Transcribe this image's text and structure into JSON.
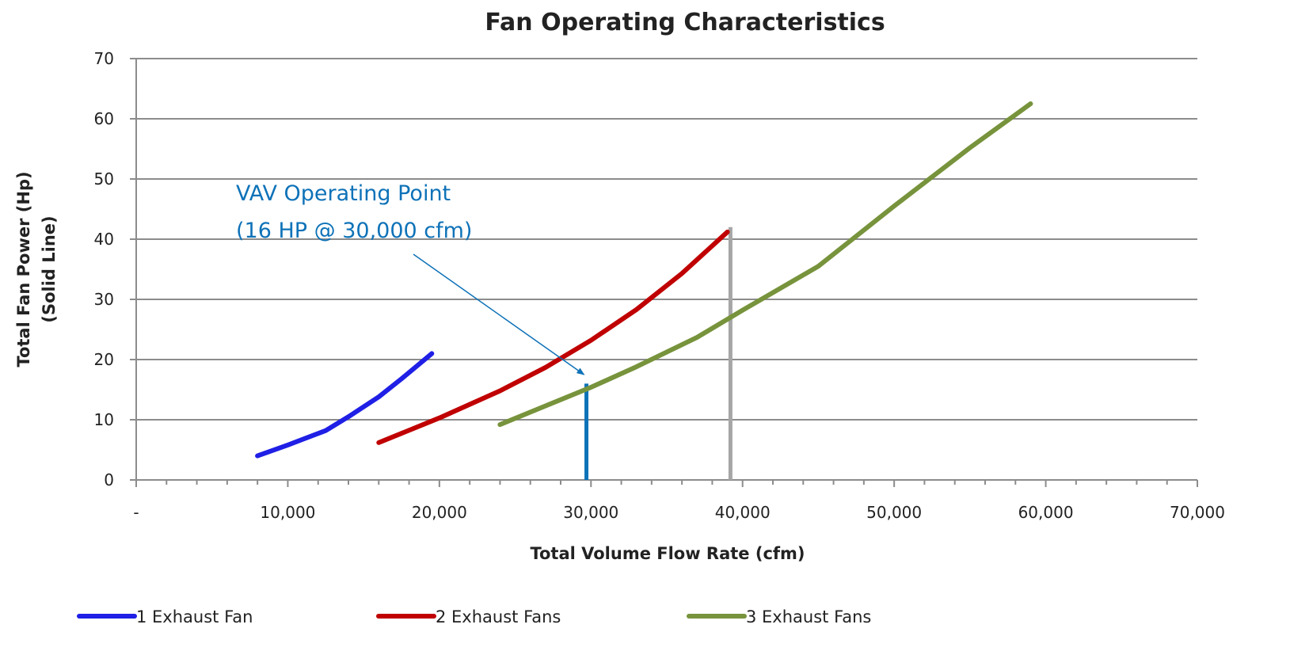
{
  "chart_data": {
    "type": "line",
    "title": "Fan Operating Characteristics",
    "xlabel": "Total Volume Flow Rate (cfm)",
    "ylabel_lines": [
      "Total Fan Power (Hp)",
      "(Solid Line)"
    ],
    "xlim": [
      0,
      70000
    ],
    "ylim": [
      0,
      70
    ],
    "x_ticks": [
      0,
      10000,
      20000,
      30000,
      40000,
      50000,
      60000,
      70000
    ],
    "x_tick_labels": [
      "-",
      "10,000",
      "20,000",
      "30,000",
      "40,000",
      "50,000",
      "60,000",
      "70,000"
    ],
    "y_ticks": [
      0,
      10,
      20,
      30,
      40,
      50,
      60,
      70
    ],
    "y_tick_labels": [
      "0",
      "10",
      "20",
      "30",
      "40",
      "50",
      "60",
      "70"
    ],
    "grid": "horizontal",
    "legend_position": "bottom",
    "series": [
      {
        "name": "1 Exhaust Fan",
        "color": "#1f1fe6",
        "x": [
          8000,
          10000,
          12500,
          14000,
          16000,
          17500,
          19500
        ],
        "y": [
          4,
          5.8,
          8.2,
          10.5,
          13.8,
          16.8,
          21
        ]
      },
      {
        "name": "2 Exhaust Fans",
        "color": "#c00000",
        "x": [
          16000,
          20000,
          24000,
          27000,
          30000,
          33000,
          36000,
          39000
        ],
        "y": [
          6.2,
          10.3,
          14.8,
          18.7,
          23.2,
          28.3,
          34.3,
          41.2
        ]
      },
      {
        "name": "3 Exhaust Fans",
        "color": "#77933c",
        "x": [
          24000,
          27000,
          30000,
          33000,
          37000,
          40000,
          45000,
          50000,
          55000,
          59000
        ],
        "y": [
          9.2,
          12.3,
          15.4,
          18.8,
          23.7,
          28.2,
          35.5,
          45.5,
          55.2,
          62.5
        ]
      }
    ],
    "reference_lines": [
      {
        "x": 29700,
        "y_from": 0,
        "y_to": 16,
        "color": "#0e72b8"
      },
      {
        "x": 39200,
        "y_from": 0,
        "y_to": 42,
        "color": "#a6a6a6"
      }
    ],
    "annotation": {
      "lines": [
        "VAV Operating Point",
        "(16 HP @ 30,000 cfm)"
      ],
      "color": "#0e72b8",
      "arrow_to": {
        "x": 29700,
        "y": 16
      }
    }
  }
}
